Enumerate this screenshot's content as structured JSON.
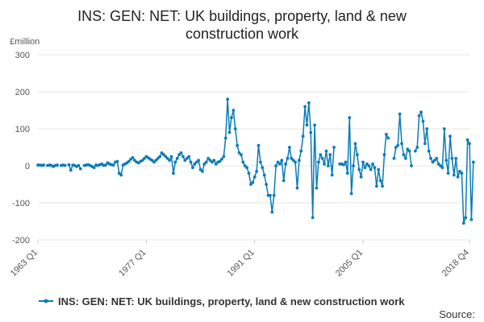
{
  "chart_data": {
    "type": "line",
    "title_line1": "INS: GEN: NET: UK buildings, property, land & new",
    "title_line2": "construction work",
    "ylabel": "£million",
    "ylim": [
      -200,
      300
    ],
    "yticks": [
      -200,
      -100,
      0,
      100,
      200,
      300
    ],
    "xlim": [
      "1963 Q1",
      "2018 Q4"
    ],
    "xticks": [
      "1963 Q1",
      "1977 Q1",
      "1991 Q1",
      "2005 Q1",
      "2018 Q4"
    ],
    "grid": true,
    "legend_position": "bottom",
    "source_label": "Source:",
    "colors": {
      "series": "#0a7cb8"
    },
    "series": [
      {
        "name": "INS: GEN: NET: UK buildings, property, land & new construction work",
        "start_year": 1963,
        "start_quarter": 1,
        "values": [
          2,
          2,
          1,
          2,
          null,
          1,
          2,
          1,
          -2,
          1,
          2,
          null,
          1,
          2,
          1,
          null,
          3,
          -12,
          2,
          1,
          -2,
          1,
          -8,
          null,
          1,
          2,
          3,
          1,
          -2,
          -5,
          2,
          1,
          3,
          5,
          1,
          2,
          8,
          5,
          3,
          2,
          10,
          12,
          -20,
          -25,
          2,
          5,
          8,
          12,
          18,
          22,
          15,
          10,
          8,
          12,
          15,
          20,
          25,
          22,
          18,
          15,
          10,
          15,
          20,
          25,
          35,
          30,
          25,
          20,
          15,
          25,
          -20,
          10,
          20,
          30,
          35,
          25,
          15,
          20,
          25,
          10,
          -5,
          5,
          10,
          15,
          -10,
          -15,
          5,
          10,
          20,
          15,
          10,
          15,
          5,
          10,
          12,
          18,
          25,
          75,
          180,
          90,
          130,
          150,
          100,
          55,
          35,
          30,
          10,
          0,
          -5,
          -20,
          -50,
          -45,
          -30,
          -15,
          55,
          10,
          -5,
          -25,
          -50,
          -80,
          -80,
          -125,
          -80,
          0,
          10,
          5,
          15,
          -40,
          5,
          20,
          50,
          20,
          15,
          10,
          -60,
          15,
          40,
          80,
          160,
          110,
          170,
          90,
          -140,
          110,
          -60,
          10,
          30,
          20,
          5,
          40,
          0,
          30,
          -25,
          50,
          null,
          null,
          5,
          5,
          3,
          10,
          -20,
          130,
          -75,
          0,
          60,
          30,
          -10,
          -30,
          10,
          -5,
          5,
          0,
          -10,
          5,
          -5,
          -55,
          -10,
          -40,
          -55,
          30,
          85,
          75,
          null,
          null,
          20,
          50,
          55,
          140,
          60,
          30,
          20,
          45,
          40,
          0,
          null,
          40,
          50,
          135,
          145,
          120,
          60,
          100,
          40,
          20,
          10,
          15,
          20,
          5,
          0,
          -5,
          100,
          15,
          -20,
          80,
          20,
          -25,
          20,
          -30,
          -15,
          -20,
          -155,
          -140,
          70,
          60,
          -145,
          10
        ]
      }
    ]
  }
}
